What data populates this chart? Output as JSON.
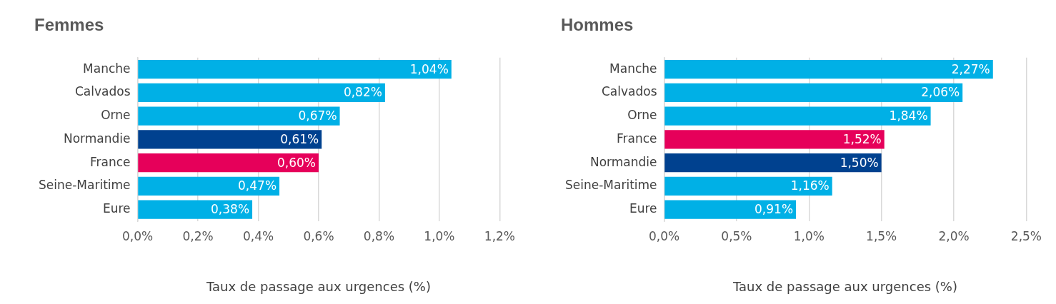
{
  "chart_data": [
    {
      "type": "bar",
      "title": "Femmes",
      "xlabel": "Taux de passage aux urgences (%)",
      "orientation": "horizontal",
      "categories": [
        "Manche",
        "Calvados",
        "Orne",
        "Normandie",
        "France",
        "Seine-Maritime",
        "Eure"
      ],
      "values": [
        1.04,
        0.82,
        0.67,
        0.61,
        0.6,
        0.47,
        0.38
      ],
      "colors": [
        "#00b0e6",
        "#00b0e6",
        "#00b0e6",
        "#00418f",
        "#e6005a",
        "#00b0e6",
        "#00b0e6"
      ],
      "value_labels": [
        "1,04%",
        "0,82%",
        "0,67%",
        "0,61%",
        "0,60%",
        "0,47%",
        "0,38%"
      ],
      "xlim": [
        0,
        1.2
      ],
      "xticks": [
        {
          "value": 0,
          "label": "0,0%"
        },
        {
          "value": 0.2,
          "label": "0,2%"
        },
        {
          "value": 0.4,
          "label": "0,4%"
        },
        {
          "value": 0.6,
          "label": "0,6%"
        },
        {
          "value": 0.8,
          "label": "0,8%"
        },
        {
          "value": 1.0,
          "label": "1,0%"
        },
        {
          "value": 1.2,
          "label": "1,2%"
        }
      ],
      "grid": "x",
      "legend": false
    },
    {
      "type": "bar",
      "title": "Hommes",
      "xlabel": "Taux de passage aux urgences (%)",
      "orientation": "horizontal",
      "categories": [
        "Manche",
        "Calvados",
        "Orne",
        "France",
        "Normandie",
        "Seine-Maritime",
        "Eure"
      ],
      "values": [
        2.27,
        2.06,
        1.84,
        1.52,
        1.5,
        1.16,
        0.91
      ],
      "colors": [
        "#00b0e6",
        "#00b0e6",
        "#00b0e6",
        "#e6005a",
        "#00418f",
        "#00b0e6",
        "#00b0e6"
      ],
      "value_labels": [
        "2,27%",
        "2,06%",
        "1,84%",
        "1,52%",
        "1,50%",
        "1,16%",
        "0,91%"
      ],
      "xlim": [
        0,
        2.5
      ],
      "xticks": [
        {
          "value": 0,
          "label": "0,0%"
        },
        {
          "value": 0.5,
          "label": "0,5%"
        },
        {
          "value": 1.0,
          "label": "1,0%"
        },
        {
          "value": 1.5,
          "label": "1,5%"
        },
        {
          "value": 2.0,
          "label": "2,0%"
        },
        {
          "value": 2.5,
          "label": "2,5%"
        }
      ],
      "grid": "x",
      "legend": false
    }
  ]
}
